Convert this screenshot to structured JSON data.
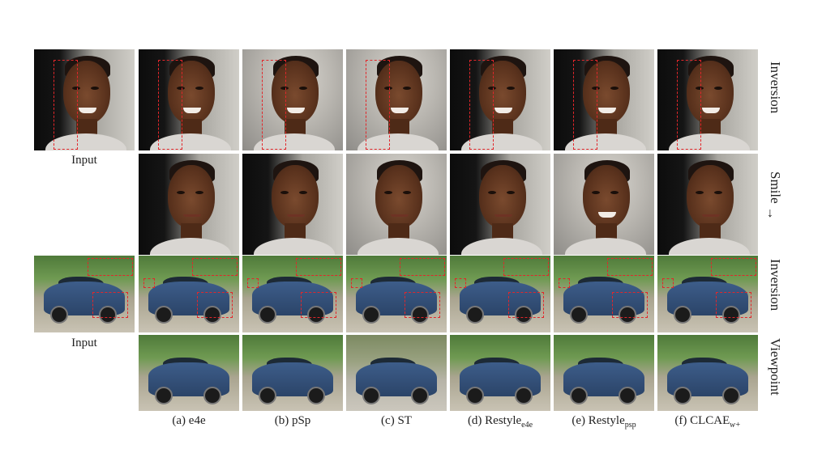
{
  "row_labels": {
    "face_inversion": "Inversion",
    "face_edit": "Smile",
    "car_inversion": "Inversion",
    "car_edit": "Viewpoint"
  },
  "input_caption_face": "Input",
  "input_caption_car": "Input",
  "columns": [
    {
      "prefix": "(a) e4e",
      "sub": ""
    },
    {
      "prefix": "(b) pSp",
      "sub": ""
    },
    {
      "prefix": "(c) ST",
      "sub": ""
    },
    {
      "prefix": "(d) Restyle",
      "sub": "e4e"
    },
    {
      "prefix": "(e) Restyle",
      "sub": "psp"
    },
    {
      "prefix": "(f) CLCAE",
      "sub": "w+"
    }
  ],
  "icons": {
    "smile_arrow": "arrow-down-icon"
  },
  "colors": {
    "highlight_box": "#e2262a"
  }
}
